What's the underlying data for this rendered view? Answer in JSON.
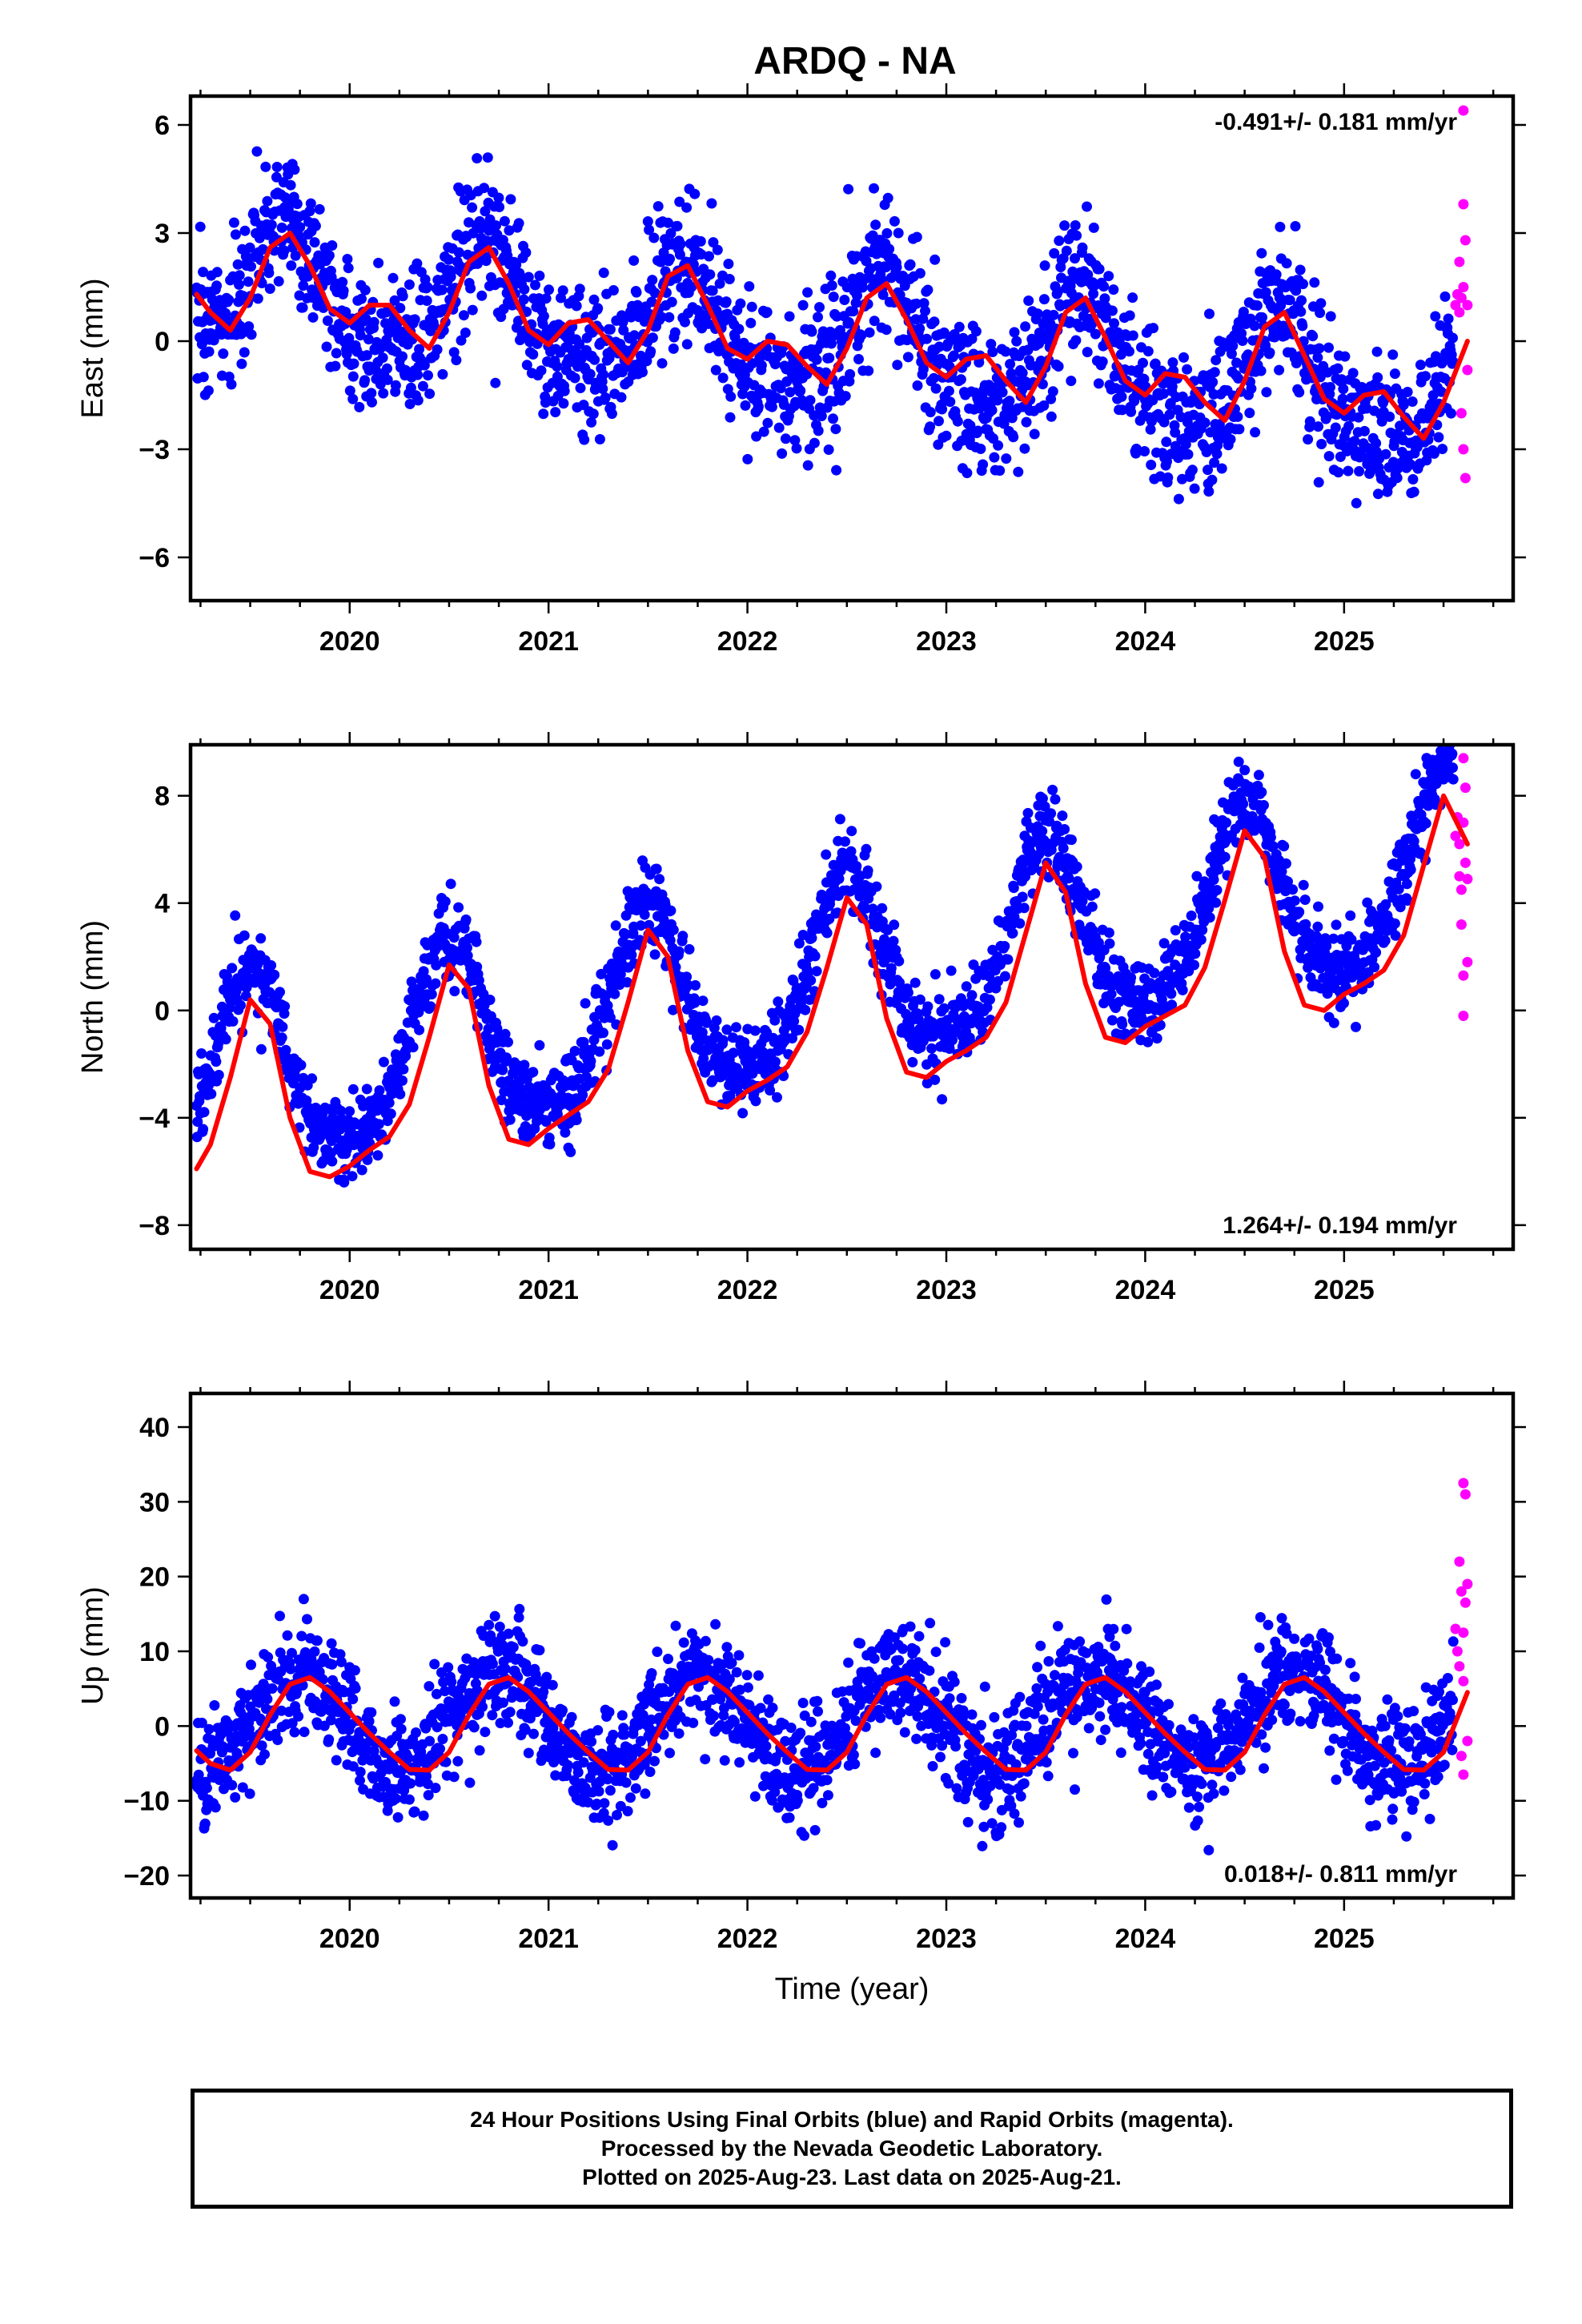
{
  "title": "ARDQ - NA",
  "chart_data": [
    {
      "type": "scatter",
      "ylabel": "East (mm)",
      "xlabel": "",
      "rate": "-0.491+/- 0.181 mm/yr",
      "rate_position": "top-right",
      "xlim": [
        2019.2,
        2025.85
      ],
      "ylim": [
        -7.2,
        6.8
      ],
      "xticks": [
        2020,
        2021,
        2022,
        2023,
        2024,
        2025
      ],
      "yticks": [
        -6,
        -3,
        0,
        3,
        6
      ],
      "ytick_labels": [
        "−6",
        "−3",
        "0",
        "3",
        "6"
      ],
      "grid": false,
      "series": [
        {
          "role": "final",
          "color": "#0000ff",
          "marker": "dot",
          "model": {
            "start": 2019.23,
            "end": 2025.55,
            "offset": 1.6,
            "trend": -0.491,
            "annual_amp": 1.6,
            "annual_peak": 0.68,
            "semiannual_amp": 0.4,
            "scatter": 1.0
          }
        },
        {
          "role": "rapid",
          "color": "#ff00ff",
          "marker": "dot",
          "x": [
            2025.56,
            2025.57,
            2025.58,
            2025.59,
            2025.6,
            2025.61,
            2025.62,
            2025.6,
            2025.59,
            2025.6,
            2025.61,
            2025.6,
            2025.62,
            2025.58
          ],
          "y": [
            1.0,
            1.3,
            0.8,
            1.2,
            3.8,
            2.8,
            1.0,
            1.5,
            -2.0,
            -3.0,
            -3.8,
            6.4,
            -0.8,
            2.2
          ]
        }
      ],
      "fit": {
        "color": "#ff0000",
        "x": [
          2019.23,
          2019.3,
          2019.4,
          2019.5,
          2019.6,
          2019.7,
          2019.8,
          2019.9,
          2020.0,
          2020.1,
          2020.2,
          2020.3,
          2020.4,
          2020.5,
          2020.6,
          2020.7,
          2020.8,
          2020.9,
          2021.0,
          2021.1,
          2021.2,
          2021.3,
          2021.4,
          2021.5,
          2021.6,
          2021.7,
          2021.8,
          2021.9,
          2022.0,
          2022.1,
          2022.2,
          2022.3,
          2022.4,
          2022.5,
          2022.6,
          2022.7,
          2022.8,
          2022.9,
          2023.0,
          2023.1,
          2023.2,
          2023.3,
          2023.4,
          2023.5,
          2023.6,
          2023.7,
          2023.8,
          2023.9,
          2024.0,
          2024.1,
          2024.2,
          2024.3,
          2024.4,
          2024.5,
          2024.6,
          2024.7,
          2024.8,
          2024.9,
          2025.0,
          2025.1,
          2025.2,
          2025.3,
          2025.4,
          2025.5,
          2025.62
        ],
        "y": [
          1.3,
          0.8,
          0.3,
          1.2,
          2.6,
          3.0,
          2.1,
          0.9,
          0.5,
          1.0,
          1.0,
          0.3,
          -0.2,
          0.8,
          2.2,
          2.6,
          1.6,
          0.3,
          -0.1,
          0.5,
          0.6,
          0.0,
          -0.6,
          0.3,
          1.8,
          2.1,
          1.0,
          -0.2,
          -0.5,
          0.0,
          -0.1,
          -0.7,
          -1.2,
          -0.2,
          1.2,
          1.6,
          0.6,
          -0.6,
          -1.0,
          -0.5,
          -0.4,
          -1.1,
          -1.7,
          -0.7,
          0.8,
          1.2,
          0.1,
          -1.1,
          -1.5,
          -0.9,
          -1.0,
          -1.7,
          -2.2,
          -1.1,
          0.4,
          0.8,
          -0.4,
          -1.6,
          -2.0,
          -1.5,
          -1.4,
          -2.1,
          -2.7,
          -1.7,
          0.0
        ]
      }
    },
    {
      "type": "scatter",
      "ylabel": "North (mm)",
      "xlabel": "",
      "rate": "1.264+/- 0.194 mm/yr",
      "rate_position": "bottom-right",
      "xlim": [
        2019.2,
        2025.85
      ],
      "ylim": [
        -8.9,
        9.9
      ],
      "xticks": [
        2020,
        2021,
        2022,
        2023,
        2024,
        2025
      ],
      "yticks": [
        -8,
        -4,
        0,
        4,
        8
      ],
      "ytick_labels": [
        "−8",
        "−4",
        "0",
        "4",
        "8"
      ],
      "grid": false,
      "series": [
        {
          "role": "final",
          "color": "#0000ff",
          "marker": "dot",
          "model": {
            "start": 2019.23,
            "end": 2025.55,
            "offset": -2.9,
            "trend": 1.264,
            "annual_amp": 3.4,
            "annual_peak": 0.5,
            "semiannual_amp": 0.6,
            "scatter": 0.8
          }
        },
        {
          "role": "rapid",
          "color": "#ff00ff",
          "marker": "dot",
          "x": [
            2025.56,
            2025.57,
            2025.58,
            2025.59,
            2025.6,
            2025.61,
            2025.62,
            2025.6,
            2025.59,
            2025.6,
            2025.61,
            2025.6,
            2025.62,
            2025.58
          ],
          "y": [
            6.5,
            7.2,
            5.0,
            4.5,
            9.4,
            8.3,
            1.8,
            1.3,
            3.2,
            -0.2,
            5.5,
            7.0,
            4.9,
            6.2
          ]
        }
      ],
      "fit": {
        "color": "#ff0000",
        "x": [
          2019.23,
          2019.3,
          2019.4,
          2019.5,
          2019.6,
          2019.7,
          2019.8,
          2019.9,
          2020.0,
          2020.1,
          2020.2,
          2020.3,
          2020.4,
          2020.5,
          2020.6,
          2020.7,
          2020.8,
          2020.9,
          2021.0,
          2021.1,
          2021.2,
          2021.3,
          2021.4,
          2021.5,
          2021.6,
          2021.7,
          2021.8,
          2021.9,
          2022.0,
          2022.1,
          2022.2,
          2022.3,
          2022.4,
          2022.5,
          2022.6,
          2022.7,
          2022.8,
          2022.9,
          2023.0,
          2023.1,
          2023.2,
          2023.3,
          2023.4,
          2023.5,
          2023.6,
          2023.7,
          2023.8,
          2023.9,
          2024.0,
          2024.1,
          2024.2,
          2024.3,
          2024.4,
          2024.5,
          2024.6,
          2024.7,
          2024.8,
          2024.9,
          2025.0,
          2025.1,
          2025.2,
          2025.3,
          2025.4,
          2025.5,
          2025.62
        ],
        "y": [
          -5.9,
          -5.0,
          -2.5,
          0.4,
          -0.5,
          -4.0,
          -6.0,
          -6.2,
          -5.8,
          -5.2,
          -4.7,
          -3.5,
          -1.0,
          1.7,
          0.8,
          -2.8,
          -4.8,
          -5.0,
          -4.4,
          -3.9,
          -3.4,
          -2.2,
          0.3,
          3.0,
          2.0,
          -1.5,
          -3.4,
          -3.6,
          -3.0,
          -2.6,
          -2.1,
          -0.8,
          1.6,
          4.2,
          3.2,
          -0.3,
          -2.3,
          -2.5,
          -1.9,
          -1.5,
          -1.0,
          0.3,
          2.9,
          5.5,
          4.4,
          1.0,
          -1.0,
          -1.2,
          -0.6,
          -0.2,
          0.2,
          1.6,
          4.1,
          6.7,
          5.7,
          2.2,
          0.2,
          0.0,
          0.6,
          1.0,
          1.5,
          2.8,
          5.4,
          8.0,
          6.2
        ]
      }
    },
    {
      "type": "scatter",
      "ylabel": "Up (mm)",
      "xlabel": "Time (year)",
      "rate": "0.018+/- 0.811 mm/yr",
      "rate_position": "bottom-right",
      "xlim": [
        2019.2,
        2025.85
      ],
      "ylim": [
        -23,
        44.5
      ],
      "xticks": [
        2020,
        2021,
        2022,
        2023,
        2024,
        2025
      ],
      "yticks": [
        -20,
        -10,
        0,
        10,
        20,
        30,
        40
      ],
      "ytick_labels": [
        "−20",
        "−10",
        "0",
        "10",
        "20",
        "30",
        "40"
      ],
      "grid": false,
      "series": [
        {
          "role": "final",
          "color": "#0000ff",
          "marker": "dot",
          "model": {
            "start": 2019.23,
            "end": 2025.55,
            "offset": 0.5,
            "trend": 0.018,
            "annual_amp": 6.3,
            "annual_peak": 0.75,
            "semiannual_amp": 0.0,
            "scatter": 3.6
          }
        },
        {
          "role": "rapid",
          "color": "#ff00ff",
          "marker": "dot",
          "x": [
            2025.56,
            2025.57,
            2025.58,
            2025.59,
            2025.6,
            2025.61,
            2025.62,
            2025.6,
            2025.59,
            2025.6,
            2025.61,
            2025.6,
            2025.62,
            2025.58
          ],
          "y": [
            13.0,
            10.0,
            22.0,
            18.0,
            32.5,
            31.0,
            -2.0,
            -6.5,
            -4.0,
            6.0,
            16.5,
            12.5,
            19.0,
            8.0
          ]
        }
      ],
      "fit": {
        "color": "#ff0000",
        "x": [
          2019.23,
          2019.3,
          2019.4,
          2019.5,
          2019.6,
          2019.7,
          2019.8,
          2019.9,
          2020.0,
          2020.1,
          2020.2,
          2020.3,
          2020.4,
          2020.5,
          2020.6,
          2020.7,
          2020.8,
          2020.9,
          2021.0,
          2021.1,
          2021.2,
          2021.3,
          2021.4,
          2021.5,
          2021.6,
          2021.7,
          2021.8,
          2021.9,
          2022.0,
          2022.1,
          2022.2,
          2022.3,
          2022.4,
          2022.5,
          2022.6,
          2022.7,
          2022.8,
          2022.9,
          2023.0,
          2023.1,
          2023.2,
          2023.3,
          2023.4,
          2023.5,
          2023.6,
          2023.7,
          2023.8,
          2023.9,
          2024.0,
          2024.1,
          2024.2,
          2024.3,
          2024.4,
          2024.5,
          2024.6,
          2024.7,
          2024.8,
          2024.9,
          2025.0,
          2025.1,
          2025.2,
          2025.3,
          2025.4,
          2025.5,
          2025.62
        ],
        "y": [
          -3.3,
          -5.0,
          -5.9,
          -3.5,
          1.5,
          5.6,
          6.5,
          4.6,
          1.8,
          -1.0,
          -3.5,
          -5.8,
          -5.9,
          -3.5,
          1.5,
          5.6,
          6.5,
          4.6,
          1.8,
          -1.0,
          -3.5,
          -5.8,
          -5.9,
          -3.5,
          1.5,
          5.6,
          6.5,
          4.6,
          1.8,
          -1.0,
          -3.5,
          -5.8,
          -5.9,
          -3.5,
          1.5,
          5.6,
          6.5,
          4.6,
          1.8,
          -1.0,
          -3.5,
          -5.8,
          -5.9,
          -3.5,
          1.5,
          5.6,
          6.5,
          4.6,
          1.8,
          -1.0,
          -3.5,
          -5.8,
          -5.9,
          -3.5,
          1.5,
          5.6,
          6.5,
          4.6,
          1.8,
          -1.0,
          -3.5,
          -5.8,
          -5.9,
          -3.5,
          4.5
        ]
      }
    }
  ],
  "footer": {
    "line1": "24 Hour Positions Using Final Orbits (blue) and Rapid Orbits (magenta).",
    "line2": "Processed by the Nevada Geodetic Laboratory.",
    "line3": "Plotted on 2025-Aug-23. Last data on 2025-Aug-21."
  }
}
